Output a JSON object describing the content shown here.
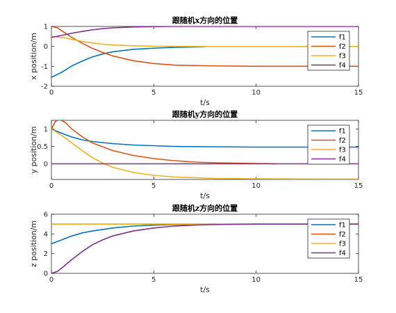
{
  "colors": {
    "f1": "#0072BD",
    "f2": "#D95319",
    "f3": "#EDB120",
    "f4": "#7E2F8E"
  },
  "chart_data": [
    {
      "type": "line",
      "title": "跟随机x方向的位置",
      "xlabel": "t/s",
      "ylabel": "x position/m",
      "xlim": [
        0,
        15
      ],
      "ylim": [
        -2,
        1
      ],
      "xticks": [
        "0",
        "5",
        "10",
        "15"
      ],
      "yticks": [
        "-2",
        "-1",
        "0",
        "1"
      ],
      "legend_position": "top-right",
      "grid": false,
      "series": [
        {
          "name": "f1",
          "color": "#0072BD",
          "x": [
            0,
            0.5,
            1,
            1.5,
            2,
            2.5,
            3,
            4,
            5,
            6,
            7,
            7.5
          ],
          "y": [
            -1.55,
            -1.3,
            -0.98,
            -0.74,
            -0.53,
            -0.38,
            -0.27,
            -0.15,
            -0.09,
            -0.05,
            -0.03,
            -0.02
          ]
        },
        {
          "name": "f2",
          "color": "#D95319",
          "x": [
            0,
            0.3,
            0.6,
            1,
            1.5,
            2,
            2.5,
            3,
            4,
            5,
            6,
            8,
            10,
            12,
            15
          ],
          "y": [
            1.0,
            0.93,
            0.72,
            0.45,
            0.16,
            -0.1,
            -0.3,
            -0.48,
            -0.72,
            -0.86,
            -0.94,
            -0.98,
            -1.0,
            -1.0,
            -1.0
          ]
        },
        {
          "name": "f3",
          "color": "#EDB120",
          "x": [
            0,
            0.5,
            1,
            1.5,
            2,
            2.5,
            3,
            4,
            5,
            6,
            8,
            10,
            15
          ],
          "y": [
            0.5,
            0.45,
            0.35,
            0.25,
            0.17,
            0.11,
            0.07,
            0.03,
            0.01,
            0.0,
            -0.01,
            -0.01,
            -0.01
          ]
        },
        {
          "name": "f4",
          "color": "#7E2F8E",
          "x": [
            0,
            0.5,
            1,
            1.5,
            2,
            2.5,
            3,
            4,
            5,
            6,
            8,
            10,
            15
          ],
          "y": [
            0.45,
            0.55,
            0.66,
            0.75,
            0.83,
            0.89,
            0.93,
            0.97,
            0.99,
            1.0,
            1.0,
            1.0,
            1.0
          ]
        }
      ]
    },
    {
      "type": "line",
      "title": "跟随机y方向的位置",
      "xlabel": "t/s",
      "ylabel": "y position/m",
      "xlim": [
        0,
        15
      ],
      "ylim": [
        -0.45,
        1.25
      ],
      "xticks": [
        "0",
        "5",
        "10",
        "15"
      ],
      "yticks": [
        "0",
        "0.5",
        "1"
      ],
      "legend_position": "top-right",
      "grid": false,
      "series": [
        {
          "name": "f1",
          "color": "#0072BD",
          "x": [
            0,
            0.5,
            1,
            1.5,
            2,
            3,
            4,
            5,
            6,
            8,
            10,
            12,
            15
          ],
          "y": [
            1.0,
            0.88,
            0.77,
            0.69,
            0.64,
            0.58,
            0.54,
            0.52,
            0.5,
            0.49,
            0.48,
            0.48,
            0.48
          ]
        },
        {
          "name": "f2",
          "color": "#D95319",
          "x": [
            0,
            0.2,
            0.4,
            0.7,
            1,
            1.5,
            2,
            3,
            4,
            5,
            6,
            7,
            8,
            9,
            10,
            11
          ],
          "y": [
            1.0,
            1.22,
            1.28,
            1.18,
            1.0,
            0.78,
            0.6,
            0.38,
            0.24,
            0.15,
            0.09,
            0.05,
            0.03,
            0.02,
            0.01,
            0.0
          ]
        },
        {
          "name": "f3",
          "color": "#EDB120",
          "x": [
            0,
            0.5,
            1,
            1.5,
            2,
            2.5,
            3,
            4,
            5,
            6,
            8,
            10,
            15
          ],
          "y": [
            1.0,
            0.82,
            0.6,
            0.38,
            0.18,
            0.02,
            -0.1,
            -0.25,
            -0.33,
            -0.38,
            -0.42,
            -0.43,
            -0.44
          ]
        },
        {
          "name": "f4",
          "color": "#7E2F8E",
          "x": [
            0,
            15
          ],
          "y": [
            0.0,
            0.0
          ]
        }
      ]
    },
    {
      "type": "line",
      "title": "跟随机z方向的位置",
      "xlabel": "t/s",
      "ylabel": "z position/m",
      "xlim": [
        0,
        15
      ],
      "ylim": [
        0,
        6
      ],
      "xticks": [
        "0",
        "5",
        "10",
        "15"
      ],
      "yticks": [
        "0",
        "2",
        "4",
        "6"
      ],
      "legend_position": "top-right",
      "grid": false,
      "series": [
        {
          "name": "f1",
          "color": "#0072BD",
          "x": [
            0,
            0.5,
            1,
            1.5,
            2,
            3,
            4,
            5,
            6,
            7,
            8
          ],
          "y": [
            3.0,
            3.4,
            3.8,
            4.1,
            4.3,
            4.6,
            4.8,
            4.9,
            4.95,
            4.98,
            5.0
          ]
        },
        {
          "name": "f2",
          "color": "#D95319",
          "x": [
            0,
            15
          ],
          "y": [
            5.0,
            5.0
          ]
        },
        {
          "name": "f3",
          "color": "#EDB120",
          "x": [
            0,
            15
          ],
          "y": [
            5.0,
            5.0
          ]
        },
        {
          "name": "f4",
          "color": "#7E2F8E",
          "x": [
            0,
            0.3,
            0.6,
            1,
            1.5,
            2,
            2.5,
            3,
            4,
            5,
            6,
            7,
            8,
            10,
            15
          ],
          "y": [
            0.0,
            0.2,
            0.7,
            1.4,
            2.2,
            2.9,
            3.4,
            3.8,
            4.3,
            4.6,
            4.8,
            4.9,
            4.95,
            5.0,
            5.0
          ]
        }
      ]
    }
  ]
}
